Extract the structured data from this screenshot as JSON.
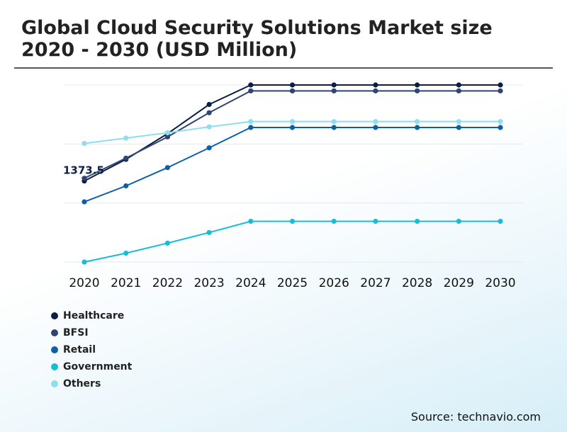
{
  "chart_data": {
    "type": "line",
    "title": "Global Cloud Security Solutions Market size 2020 - 2030 (USD Million)",
    "xlabel": "",
    "ylabel": "",
    "x": [
      "2020",
      "2021",
      "2022",
      "2023",
      "2024",
      "2025",
      "2026",
      "2027",
      "2028",
      "2029",
      "2030"
    ],
    "ylim": [
      0,
      3000
    ],
    "grid": true,
    "series": [
      {
        "name": "Healthcare",
        "color": "#0b1f45",
        "values": [
          1373.5,
          1740,
          2175,
          2670,
          3000,
          3000,
          3000,
          3000,
          3000,
          3000,
          3000
        ]
      },
      {
        "name": "BFSI",
        "color": "#2e4474",
        "values": [
          1420,
          1760,
          2120,
          2530,
          2900,
          2900,
          2900,
          2900,
          2900,
          2900,
          2900
        ]
      },
      {
        "name": "Retail",
        "color": "#0d5fa6",
        "values": [
          1020,
          1290,
          1600,
          1935,
          2280,
          2280,
          2280,
          2280,
          2280,
          2280,
          2280
        ]
      },
      {
        "name": "Government",
        "color": "#17bdd8",
        "values": [
          0,
          150,
          320,
          500,
          690,
          690,
          690,
          690,
          690,
          690,
          690
        ]
      },
      {
        "name": "Others",
        "color": "#8ddfee",
        "values": [
          2010,
          2100,
          2190,
          2290,
          2380,
          2380,
          2380,
          2380,
          2380,
          2380,
          2380
        ]
      }
    ],
    "annotations": [
      {
        "series": "Healthcare",
        "x": "2020",
        "text": "1373.5"
      }
    ]
  },
  "source": "Source: technavio.com"
}
